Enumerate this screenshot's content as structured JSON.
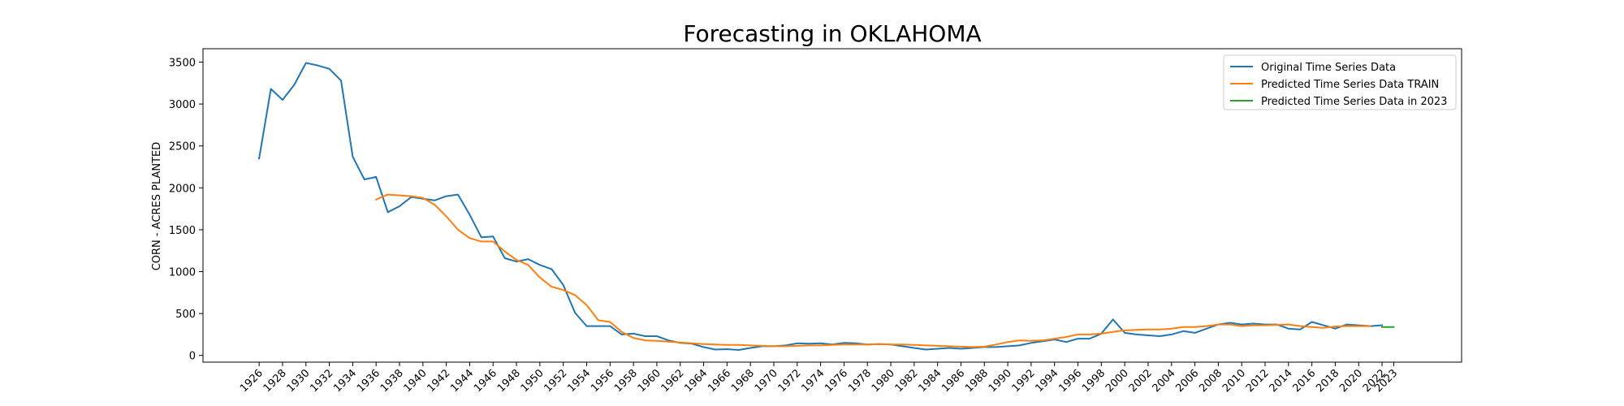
{
  "chart_data": {
    "type": "line",
    "title": "Forecasting in OKLAHOMA",
    "xlabel": "",
    "ylabel": "CORN - ACRES PLANTED",
    "xlim": [
      1921.2,
      2028.8
    ],
    "ylim": [
      -80,
      3660
    ],
    "grid": false,
    "legend_position": "top-right",
    "x_ticks": [
      1926,
      1928,
      1930,
      1932,
      1934,
      1936,
      1938,
      1940,
      1942,
      1944,
      1946,
      1948,
      1950,
      1952,
      1954,
      1956,
      1958,
      1960,
      1962,
      1964,
      1966,
      1968,
      1970,
      1972,
      1974,
      1976,
      1978,
      1980,
      1982,
      1984,
      1986,
      1988,
      1990,
      1992,
      1994,
      1996,
      1998,
      2000,
      2002,
      2004,
      2006,
      2008,
      2010,
      2012,
      2014,
      2016,
      2018,
      2020,
      2022,
      2023
    ],
    "y_ticks": [
      0,
      500,
      1000,
      1500,
      2000,
      2500,
      3000,
      3500
    ],
    "series": [
      {
        "name": "Original Time Series Data",
        "color": "#1f77b4",
        "x": [
          1926,
          1927,
          1928,
          1929,
          1930,
          1931,
          1932,
          1933,
          1934,
          1935,
          1936,
          1937,
          1938,
          1939,
          1940,
          1941,
          1942,
          1943,
          1944,
          1945,
          1946,
          1947,
          1948,
          1949,
          1950,
          1951,
          1952,
          1953,
          1954,
          1955,
          1956,
          1957,
          1958,
          1959,
          1960,
          1961,
          1962,
          1963,
          1964,
          1965,
          1966,
          1967,
          1968,
          1969,
          1970,
          1971,
          1972,
          1973,
          1974,
          1975,
          1976,
          1977,
          1978,
          1979,
          1980,
          1981,
          1982,
          1983,
          1984,
          1985,
          1986,
          1987,
          1988,
          1989,
          1990,
          1991,
          1992,
          1993,
          1994,
          1995,
          1996,
          1997,
          1998,
          1999,
          2000,
          2001,
          2002,
          2003,
          2004,
          2005,
          2006,
          2007,
          2008,
          2009,
          2010,
          2011,
          2012,
          2013,
          2014,
          2015,
          2016,
          2017,
          2018,
          2019,
          2020,
          2021,
          2022
        ],
        "y": [
          2350,
          3180,
          3050,
          3230,
          3490,
          3460,
          3420,
          3280,
          2370,
          2100,
          2130,
          1710,
          1780,
          1890,
          1870,
          1850,
          1900,
          1920,
          1680,
          1410,
          1420,
          1160,
          1120,
          1150,
          1080,
          1030,
          840,
          510,
          350,
          350,
          350,
          250,
          260,
          230,
          230,
          180,
          150,
          140,
          100,
          70,
          75,
          65,
          90,
          110,
          110,
          120,
          145,
          140,
          145,
          130,
          150,
          145,
          130,
          135,
          130,
          110,
          90,
          70,
          80,
          90,
          80,
          90,
          100,
          100,
          110,
          120,
          150,
          170,
          190,
          160,
          200,
          200,
          260,
          430,
          270,
          250,
          240,
          230,
          250,
          290,
          270,
          320,
          370,
          390,
          370,
          380,
          370,
          370,
          320,
          310,
          400,
          360,
          320,
          370,
          360,
          350,
          360
        ]
      },
      {
        "name": "Predicted Time Series Data TRAIN",
        "color": "#ff7f0e",
        "x": [
          1936,
          1937,
          1938,
          1939,
          1940,
          1941,
          1942,
          1943,
          1944,
          1945,
          1946,
          1947,
          1948,
          1949,
          1950,
          1951,
          1952,
          1953,
          1954,
          1955,
          1956,
          1957,
          1958,
          1959,
          1960,
          1961,
          1962,
          1963,
          1964,
          1965,
          1966,
          1967,
          1968,
          1969,
          1970,
          1971,
          1972,
          1973,
          1974,
          1975,
          1976,
          1977,
          1978,
          1979,
          1980,
          1981,
          1982,
          1983,
          1984,
          1985,
          1986,
          1987,
          1988,
          1989,
          1990,
          1991,
          1992,
          1993,
          1994,
          1995,
          1996,
          1997,
          1998,
          1999,
          2000,
          2001,
          2002,
          2003,
          2004,
          2005,
          2006,
          2007,
          2008,
          2009,
          2010,
          2011,
          2012,
          2013,
          2014,
          2015,
          2016,
          2017,
          2018,
          2019,
          2020,
          2021
        ],
        "y": [
          1860,
          1920,
          1910,
          1900,
          1880,
          1800,
          1660,
          1500,
          1400,
          1360,
          1360,
          1240,
          1140,
          1080,
          930,
          820,
          780,
          720,
          600,
          420,
          400,
          280,
          210,
          180,
          175,
          165,
          155,
          145,
          135,
          130,
          125,
          125,
          120,
          115,
          110,
          110,
          115,
          120,
          120,
          125,
          130,
          130,
          130,
          135,
          130,
          130,
          125,
          120,
          115,
          110,
          105,
          100,
          105,
          130,
          160,
          180,
          175,
          180,
          200,
          220,
          250,
          250,
          260,
          280,
          300,
          305,
          310,
          310,
          320,
          340,
          340,
          350,
          370,
          370,
          350,
          360,
          360,
          365,
          370,
          350,
          340,
          330,
          345,
          350,
          350,
          350
        ]
      },
      {
        "name": "Predicted Time Series Data in 2023",
        "color": "#2ca02c",
        "x": [
          2022,
          2023
        ],
        "y": [
          340,
          340
        ]
      }
    ]
  }
}
